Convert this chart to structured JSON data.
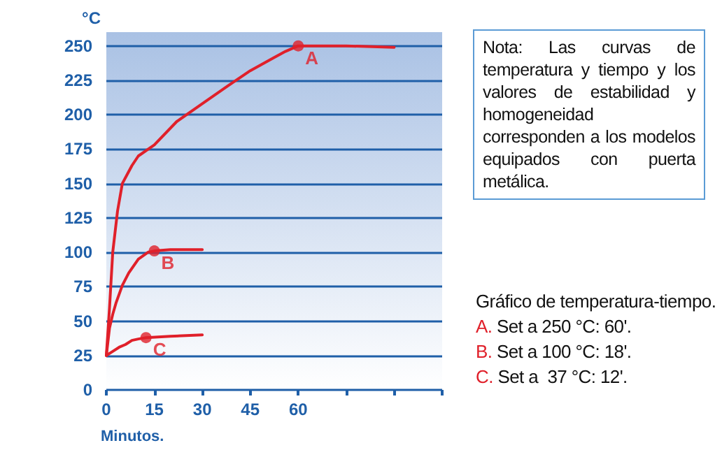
{
  "chart_data": {
    "type": "line",
    "xlabel": "Minutos.",
    "ylabel": "°C",
    "xlim": [
      0,
      105
    ],
    "xticks": [
      0,
      15,
      30,
      45,
      60,
      {
        "value": 75,
        "label": null
      },
      {
        "value": 90,
        "label": null
      },
      {
        "value": 105,
        "label": null
      }
    ],
    "ylim": [
      0,
      260
    ],
    "yticks": [
      0,
      25,
      50,
      75,
      100,
      125,
      150,
      175,
      200,
      225,
      250
    ],
    "grid": "y",
    "marker": "none",
    "line_style": "solid",
    "series": [
      {
        "color": "#e0202a",
        "x": [
          0,
          1,
          2,
          3.5,
          5,
          8,
          10,
          15,
          22,
          30,
          38,
          45,
          52,
          56,
          60,
          75,
          90
        ],
        "values": [
          25,
          60,
          100,
          130,
          150,
          163,
          170,
          178,
          195,
          208,
          221,
          232,
          241,
          246,
          250,
          250,
          249
        ]
      },
      {
        "color": "#e0202a",
        "x": [
          0,
          1,
          2,
          3,
          5,
          7,
          10,
          13,
          15,
          20,
          30
        ],
        "values": [
          25,
          45,
          55,
          63,
          76,
          85,
          95,
          100,
          101,
          102,
          102
        ]
      },
      {
        "color": "#e0202a",
        "x": [
          0,
          2,
          4,
          6,
          8,
          10,
          12.4,
          20,
          30
        ],
        "values": [
          25,
          28,
          31,
          33,
          36,
          37,
          38,
          39,
          40
        ]
      }
    ],
    "annotations": [
      {
        "text": "A",
        "x": 60,
        "y": 250
      },
      {
        "text": "B",
        "x": 15,
        "y": 101
      },
      {
        "text": "C",
        "x": 12.4,
        "y": 38
      },
      "Nota: Las curvas de temperatura y tiempo y los valores de estabilidad y homogeneidad corresponden a los modelos equipados con puerta metálica.",
      "Gráfico de temperatura-tiempo.",
      "A. Set a 250 °C: 60'.",
      "B. Set a 100 °C: 18'.",
      "C. Set a  37 °C: 12'."
    ]
  }
}
